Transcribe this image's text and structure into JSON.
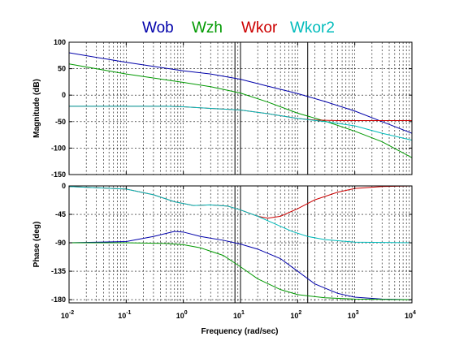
{
  "chart_data": {
    "type": "line",
    "plot": "bode",
    "legend": {
      "placement": "top-center",
      "entries": [
        {
          "name": "Wob",
          "color": "#0000aa"
        },
        {
          "name": "Wzh",
          "color": "#009900"
        },
        {
          "name": "Wkor",
          "color": "#cc0000"
        },
        {
          "name": "Wkor2",
          "color": "#00bbbb"
        }
      ]
    },
    "xlabel": "Frequency  (rad/sec)",
    "xscale": "log",
    "xlim": [
      0.01,
      10000
    ],
    "xticks": [
      {
        "value": 0.01,
        "base": "10",
        "exp": "-2"
      },
      {
        "value": 0.1,
        "base": "10",
        "exp": "-1"
      },
      {
        "value": 1,
        "base": "10",
        "exp": "0"
      },
      {
        "value": 10,
        "base": "10",
        "exp": "1"
      },
      {
        "value": 100,
        "base": "10",
        "exp": "2"
      },
      {
        "value": 1000,
        "base": "10",
        "exp": "3"
      },
      {
        "value": 10000,
        "base": "10",
        "exp": "4"
      }
    ],
    "grid": true,
    "markers": [
      8,
      10,
      150
    ],
    "panels": [
      {
        "id": "magnitude",
        "ylabel": "Magnitude (dB)",
        "ylim": [
          -150,
          100
        ],
        "yticks": [
          {
            "value": 100,
            "label": "100"
          },
          {
            "value": 50,
            "label": "50"
          },
          {
            "value": 0,
            "label": "0"
          },
          {
            "value": -50,
            "label": "-50"
          },
          {
            "value": -100,
            "label": "-100"
          },
          {
            "value": -150,
            "label": "-150"
          }
        ],
        "series": [
          {
            "name": "Wob",
            "color": "#0000aa",
            "points": [
              [
                0.01,
                80
              ],
              [
                0.1,
                62
              ],
              [
                1,
                46
              ],
              [
                3,
                40
              ],
              [
                10,
                30
              ],
              [
                30,
                17
              ],
              [
                100,
                3
              ],
              [
                300,
                -12
              ],
              [
                1000,
                -30
              ],
              [
                3000,
                -50
              ],
              [
                10000,
                -72
              ]
            ]
          },
          {
            "name": "Wzh",
            "color": "#009900",
            "points": [
              [
                0.01,
                59
              ],
              [
                0.1,
                40
              ],
              [
                1,
                24
              ],
              [
                3,
                16
              ],
              [
                10,
                4
              ],
              [
                30,
                -13
              ],
              [
                100,
                -34
              ],
              [
                300,
                -49
              ],
              [
                1000,
                -68
              ],
              [
                3000,
                -88
              ],
              [
                10000,
                -118
              ]
            ]
          },
          {
            "name": "Wkor",
            "color": "#cc0000",
            "points": [
              [
                0.01,
                -21
              ],
              [
                0.1,
                -21
              ],
              [
                0.5,
                -21
              ],
              [
                1,
                -22
              ],
              [
                3,
                -25
              ],
              [
                10,
                -28
              ],
              [
                30,
                -35
              ],
              [
                100,
                -44
              ],
              [
                200,
                -47
              ],
              [
                500,
                -48
              ],
              [
                1000,
                -48
              ],
              [
                10000,
                -48
              ]
            ]
          },
          {
            "name": "Wkor2",
            "color": "#00bbbb",
            "points": [
              [
                0.01,
                -21
              ],
              [
                0.1,
                -21
              ],
              [
                0.5,
                -21
              ],
              [
                1,
                -22
              ],
              [
                3,
                -25
              ],
              [
                10,
                -28
              ],
              [
                30,
                -35
              ],
              [
                100,
                -44
              ],
              [
                300,
                -50
              ],
              [
                1000,
                -58
              ],
              [
                3000,
                -72
              ],
              [
                10000,
                -85
              ]
            ]
          }
        ]
      },
      {
        "id": "phase",
        "ylabel": "Phase (deg)",
        "ylim": [
          -185,
          0
        ],
        "yticks": [
          {
            "value": 0,
            "label": "0"
          },
          {
            "value": -45,
            "label": "-45"
          },
          {
            "value": -90,
            "label": "-90"
          },
          {
            "value": -135,
            "label": "-135"
          },
          {
            "value": -180,
            "label": "-180"
          }
        ],
        "series": [
          {
            "name": "Wob",
            "color": "#0000aa",
            "points": [
              [
                0.01,
                -90
              ],
              [
                0.1,
                -88
              ],
              [
                0.3,
                -80
              ],
              [
                0.7,
                -72
              ],
              [
                1,
                -73
              ],
              [
                2,
                -80
              ],
              [
                5,
                -86
              ],
              [
                10,
                -92
              ],
              [
                20,
                -100
              ],
              [
                50,
                -115
              ],
              [
                100,
                -135
              ],
              [
                200,
                -155
              ],
              [
                500,
                -170
              ],
              [
                1000,
                -176
              ],
              [
                3000,
                -179
              ],
              [
                10000,
                -180
              ]
            ]
          },
          {
            "name": "Wzh",
            "color": "#009900",
            "points": [
              [
                0.01,
                -90
              ],
              [
                0.1,
                -90
              ],
              [
                0.5,
                -91
              ],
              [
                1,
                -93
              ],
              [
                2,
                -98
              ],
              [
                5,
                -110
              ],
              [
                10,
                -128
              ],
              [
                20,
                -147
              ],
              [
                50,
                -164
              ],
              [
                100,
                -172
              ],
              [
                300,
                -177
              ],
              [
                1000,
                -179
              ],
              [
                10000,
                -180
              ]
            ]
          },
          {
            "name": "Wkor",
            "color": "#cc0000",
            "points": [
              [
                0.01,
                -1
              ],
              [
                0.1,
                -5
              ],
              [
                0.3,
                -14
              ],
              [
                0.7,
                -25
              ],
              [
                1.5,
                -31
              ],
              [
                3,
                -30
              ],
              [
                6,
                -32
              ],
              [
                10,
                -38
              ],
              [
                20,
                -48
              ],
              [
                30,
                -51
              ],
              [
                50,
                -48
              ],
              [
                100,
                -36
              ],
              [
                200,
                -22
              ],
              [
                500,
                -10
              ],
              [
                1000,
                -4
              ],
              [
                3000,
                -1
              ],
              [
                10000,
                0
              ]
            ]
          },
          {
            "name": "Wkor2",
            "color": "#00bbbb",
            "points": [
              [
                0.01,
                -1
              ],
              [
                0.1,
                -5
              ],
              [
                0.3,
                -14
              ],
              [
                0.7,
                -25
              ],
              [
                1.5,
                -31
              ],
              [
                3,
                -30
              ],
              [
                6,
                -32
              ],
              [
                10,
                -38
              ],
              [
                20,
                -48
              ],
              [
                40,
                -60
              ],
              [
                80,
                -72
              ],
              [
                150,
                -80
              ],
              [
                300,
                -85
              ],
              [
                1000,
                -89
              ],
              [
                10000,
                -90
              ]
            ]
          }
        ]
      }
    ]
  }
}
